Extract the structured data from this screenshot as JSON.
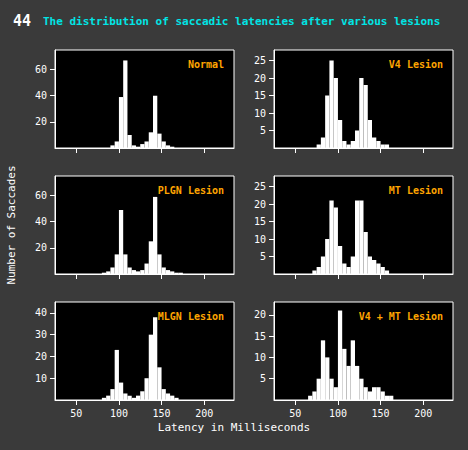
{
  "title": "The distribution of saccadic latencies after various lesions",
  "annotations": [
    "44"
  ],
  "xlabel": "Latency in Milliseconds",
  "ylabel": "Number of Saccades",
  "chart_data": [
    {
      "type": "histogram",
      "title": "Normal",
      "color": "#ffffff",
      "bins": [
        90,
        95,
        100,
        105,
        110,
        115,
        120,
        125,
        130,
        135,
        140,
        145,
        150,
        155,
        160,
        165
      ],
      "values": [
        2,
        5,
        39,
        67,
        10,
        2,
        1,
        3,
        5,
        12,
        40,
        11,
        5,
        2,
        1
      ],
      "xlim": [
        25,
        235
      ],
      "xticks": [
        50,
        100,
        150,
        200
      ],
      "ylim": [
        0,
        75
      ],
      "yticks": [
        20,
        40,
        60
      ],
      "grid": false,
      "tick_labels": "y"
    },
    {
      "type": "histogram",
      "title": "V4 Lesion",
      "color": "#ffffff",
      "bins": [
        75,
        80,
        85,
        90,
        95,
        100,
        105,
        110,
        115,
        120,
        125,
        130,
        135,
        140,
        145,
        150,
        155,
        160
      ],
      "values": [
        1,
        3,
        15,
        25,
        20,
        8,
        2,
        1,
        2,
        5,
        20,
        18,
        8,
        3,
        2,
        1,
        1
      ],
      "xlim": [
        25,
        235
      ],
      "xticks": [
        50,
        100,
        150,
        200
      ],
      "ylim": [
        0,
        28
      ],
      "yticks": [
        5,
        10,
        15,
        20,
        25
      ],
      "grid": false,
      "tick_labels": "y"
    },
    {
      "type": "histogram",
      "title": "PLGN Lesion",
      "color": "#ffffff",
      "bins": [
        80,
        85,
        90,
        95,
        100,
        105,
        110,
        115,
        120,
        125,
        130,
        135,
        140,
        145,
        150,
        155,
        160,
        165,
        170,
        175
      ],
      "values": [
        1,
        2,
        5,
        15,
        49,
        15,
        5,
        3,
        2,
        3,
        8,
        25,
        59,
        15,
        5,
        3,
        2,
        1,
        1
      ],
      "xlim": [
        25,
        235
      ],
      "xticks": [
        50,
        100,
        150,
        200
      ],
      "ylim": [
        0,
        75
      ],
      "yticks": [
        20,
        40,
        60
      ],
      "grid": false,
      "tick_labels": "y"
    },
    {
      "type": "histogram",
      "title": "MT Lesion",
      "color": "#ffffff",
      "bins": [
        70,
        75,
        80,
        85,
        90,
        95,
        100,
        105,
        110,
        115,
        120,
        125,
        130,
        135,
        140,
        145,
        150,
        155,
        160
      ],
      "values": [
        1,
        2,
        5,
        10,
        21,
        19,
        8,
        3,
        2,
        5,
        21,
        21,
        12,
        5,
        4,
        3,
        2,
        1
      ],
      "xlim": [
        25,
        235
      ],
      "xticks": [
        50,
        100,
        150,
        200
      ],
      "ylim": [
        0,
        28
      ],
      "yticks": [
        5,
        10,
        15,
        20,
        25
      ],
      "grid": false,
      "tick_labels": "y"
    },
    {
      "type": "histogram",
      "title": "MLGN Lesion",
      "color": "#ffffff",
      "bins": [
        80,
        85,
        90,
        95,
        100,
        105,
        110,
        115,
        120,
        125,
        130,
        135,
        140,
        145,
        150,
        155,
        160,
        165,
        170
      ],
      "values": [
        1,
        2,
        5,
        23,
        8,
        3,
        2,
        1,
        2,
        4,
        10,
        30,
        38,
        15,
        5,
        3,
        2,
        1
      ],
      "xlim": [
        25,
        235
      ],
      "xticks": [
        50,
        100,
        150,
        200
      ],
      "ylim": [
        0,
        45
      ],
      "yticks": [
        10,
        20,
        30,
        40
      ],
      "grid": false
    },
    {
      "type": "histogram",
      "title": "V4 + MT Lesion",
      "color": "#ffffff",
      "bins": [
        65,
        70,
        75,
        80,
        85,
        90,
        95,
        100,
        105,
        110,
        115,
        120,
        125,
        130,
        135,
        140,
        145,
        150,
        155,
        160,
        165
      ],
      "values": [
        1,
        2,
        5,
        14,
        10,
        5,
        3,
        21,
        12,
        8,
        14,
        8,
        5,
        3,
        2,
        3,
        3,
        2,
        1,
        1
      ],
      "xlim": [
        25,
        235
      ],
      "xticks": [
        50,
        100,
        150,
        200
      ],
      "ylim": [
        0,
        23
      ],
      "yticks": [
        5,
        10,
        15,
        20
      ],
      "grid": false
    }
  ]
}
